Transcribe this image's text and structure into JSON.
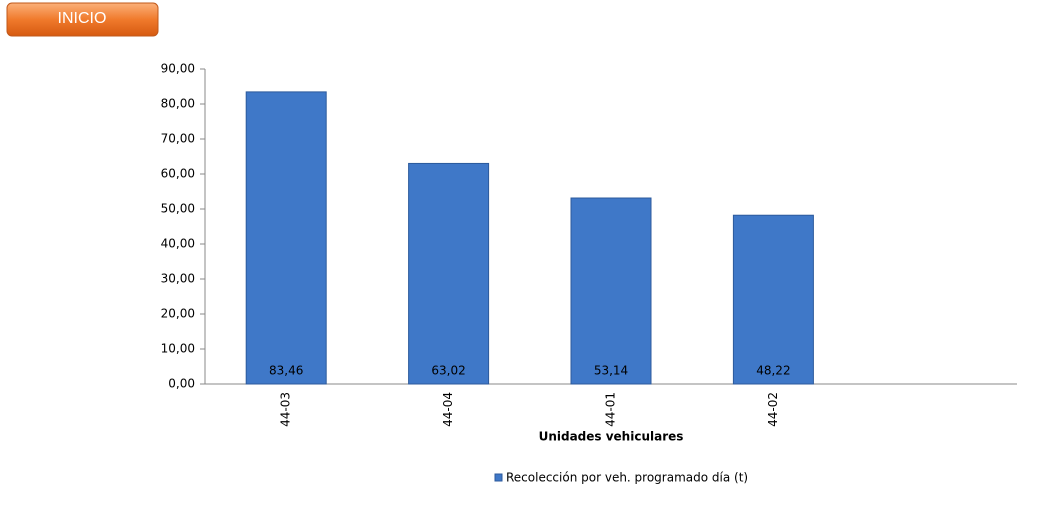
{
  "button": {
    "label": "INICIO"
  },
  "chart_data": {
    "type": "bar",
    "x_label": "Unidades vehiculares",
    "categories": [
      "44-03",
      "44-04",
      "44-01",
      "44-02",
      null
    ],
    "series": [
      {
        "name": "Recolección por veh. programado día (t)",
        "color": "#3f78c8",
        "values": [
          83.46,
          63.02,
          53.14,
          48.22,
          null
        ],
        "value_labels": [
          "83,46",
          "63,02",
          "53,14",
          "48,22",
          null
        ]
      }
    ],
    "ylim": [
      0,
      90
    ],
    "yticks": [
      {
        "value": 0,
        "label": "0,00"
      },
      {
        "value": 10,
        "label": "10,00"
      },
      {
        "value": 20,
        "label": "20,00"
      },
      {
        "value": 30,
        "label": "30,00"
      },
      {
        "value": 40,
        "label": "40,00"
      },
      {
        "value": 50,
        "label": "50,00"
      },
      {
        "value": 60,
        "label": "60,00"
      },
      {
        "value": 70,
        "label": "70,00"
      },
      {
        "value": 80,
        "label": "80,00"
      },
      {
        "value": 90,
        "label": "90,00"
      }
    ],
    "grid": false,
    "legend": "bottom"
  }
}
